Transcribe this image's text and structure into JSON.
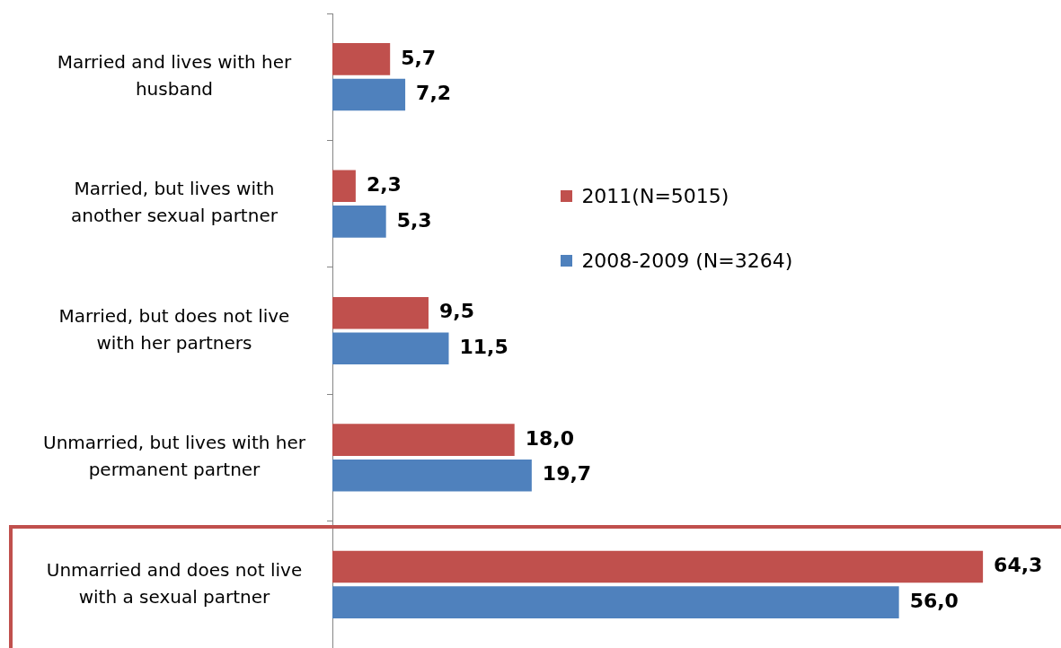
{
  "chart_data": {
    "type": "bar",
    "orientation": "horizontal",
    "categories": [
      "Married and lives with her husband",
      "Married, but lives with another sexual partner",
      "Married, but does not live with her partners",
      "Unmarried, but lives with her permanent partner",
      "Unmarried and does not live with a sexual partner"
    ],
    "series": [
      {
        "name": "2011(N=5015)",
        "color": "#c0504d",
        "values": [
          5.7,
          2.3,
          9.5,
          18.0,
          64.3
        ],
        "value_labels": [
          "5,7",
          "2,3",
          "9,5",
          "18,0",
          "64,3"
        ]
      },
      {
        "name": "2008-2009 (N=3264)",
        "color": "#4f81bd",
        "values": [
          7.2,
          5.3,
          11.5,
          19.7,
          56.0
        ],
        "value_labels": [
          "7,2",
          "5,3",
          "11,5",
          "19,7",
          "56,0"
        ]
      }
    ],
    "legend": "top",
    "tick_labels": "y"
  }
}
